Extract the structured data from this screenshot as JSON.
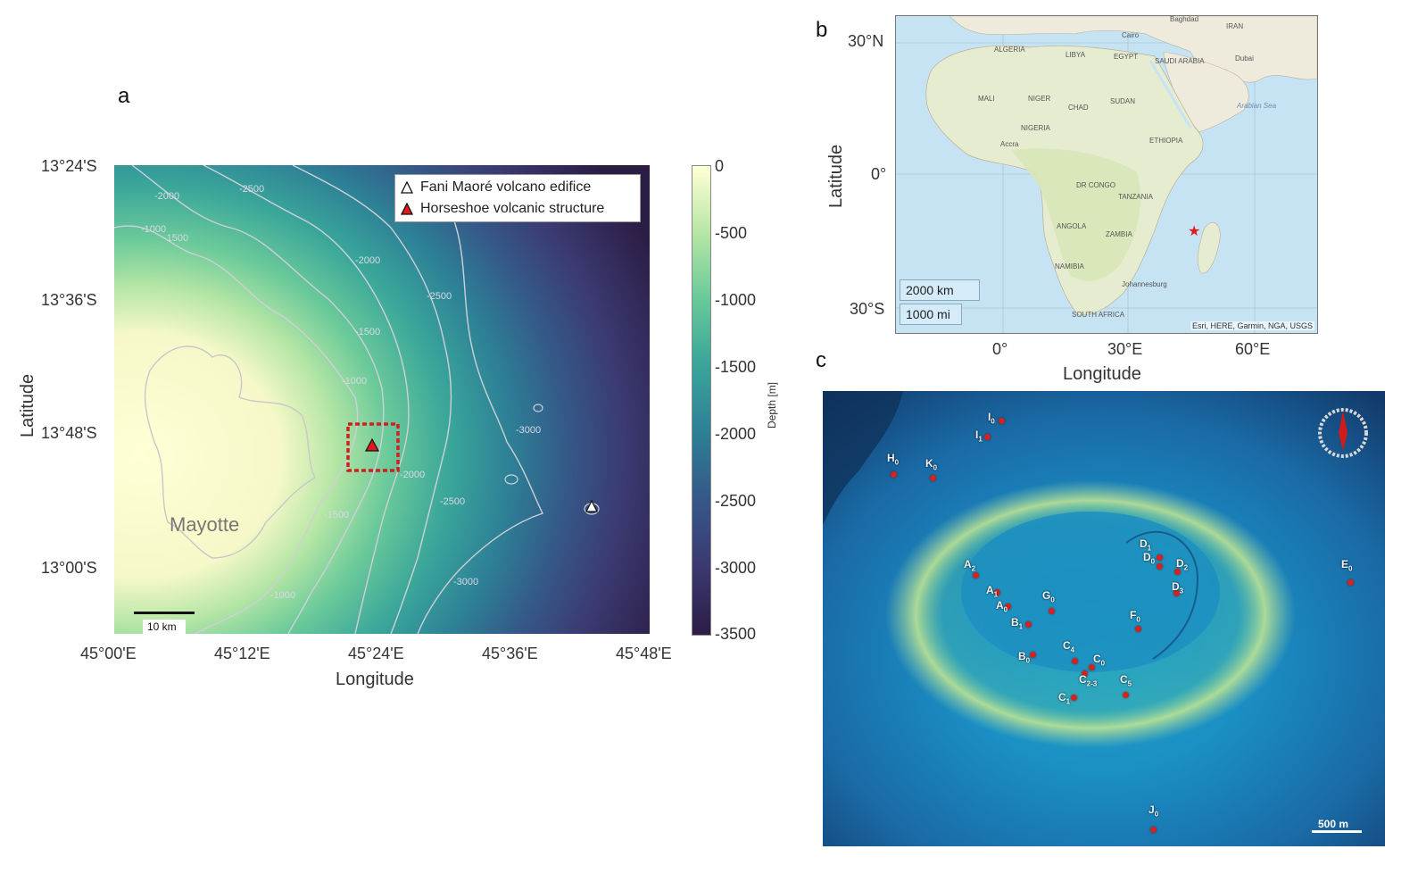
{
  "panel_a": {
    "letter": "a",
    "lat_ticks": [
      "13°24'S",
      "13°36'S",
      "13°48'S",
      "13°00'S"
    ],
    "lon_ticks": [
      "45°00'E",
      "45°12'E",
      "45°24'E",
      "45°36'E",
      "45°48'E"
    ],
    "xlabel": "Longitude",
    "ylabel": "Latitude",
    "legend": {
      "item1": "Fani Maoré volcano edifice",
      "item2": "Horseshoe volcanic structure"
    },
    "contour_labels": [
      "-2000",
      "-2500",
      "-1000",
      "-1500",
      "-2000",
      "-2500",
      "-1500",
      "-1000",
      "-3000",
      "-2000",
      "-2500",
      "-1500",
      "-3000",
      "-1000"
    ],
    "island_label": "Mayotte",
    "scale_bar": "10 km",
    "colorbar": {
      "title": "Depth [m]",
      "ticks": [
        "0",
        "-500",
        "-1000",
        "-1500",
        "-2000",
        "-2500",
        "-3000",
        "-3500"
      ],
      "colors": [
        "#ffffd6",
        "#b8e7a6",
        "#6bca9a",
        "#3aa69a",
        "#2d7f96",
        "#355888",
        "#3b3a72",
        "#2c1d45"
      ]
    },
    "marker_colors": {
      "fani": "#ffffff",
      "horseshoe": "#e01a1a",
      "box": "#d61c1c"
    }
  },
  "panel_b": {
    "letter": "b",
    "lat_ticks": [
      "30°N",
      "0°",
      "30°S"
    ],
    "lon_ticks": [
      "0°",
      "30°E",
      "60°E"
    ],
    "xlabel": "Longitude",
    "ylabel": "Latitude",
    "places": [
      "Baghdad",
      "IRAN",
      "Cairo",
      "ALGERIA",
      "LIBYA",
      "EGYPT",
      "SAUDI ARABIA",
      "Dubai",
      "MALI",
      "NIGER",
      "CHAD",
      "SUDAN",
      "NIGERIA",
      "Accra",
      "ETHIOPIA",
      "Arabian Sea",
      "DR CONGO",
      "TANZANIA",
      "ANGOLA",
      "ZAMBIA",
      "NAMIBIA",
      "Johannesburg",
      "SOUTH AFRICA"
    ],
    "scale_km": "2000 km",
    "scale_mi": "1000 mi",
    "attribution": "Esri, HERE, Garmin, NGA, USGS",
    "star_color": "#e31a1c"
  },
  "panel_c": {
    "letter": "c",
    "scale_bar": "500 m",
    "sites": [
      {
        "base": "I",
        "sub": "0"
      },
      {
        "base": "I",
        "sub": "1"
      },
      {
        "base": "H",
        "sub": "0"
      },
      {
        "base": "K",
        "sub": "0"
      },
      {
        "base": "A",
        "sub": "2"
      },
      {
        "base": "A",
        "sub": "1"
      },
      {
        "base": "A",
        "sub": "0"
      },
      {
        "base": "B",
        "sub": "1"
      },
      {
        "base": "B",
        "sub": "0"
      },
      {
        "base": "G",
        "sub": "0"
      },
      {
        "base": "C",
        "sub": "4"
      },
      {
        "base": "C",
        "sub": "0"
      },
      {
        "base": "C",
        "sub": "2-3"
      },
      {
        "base": "C",
        "sub": "1"
      },
      {
        "base": "C",
        "sub": "5"
      },
      {
        "base": "F",
        "sub": "0"
      },
      {
        "base": "D",
        "sub": "1"
      },
      {
        "base": "D",
        "sub": "0"
      },
      {
        "base": "D",
        "sub": "2"
      },
      {
        "base": "D",
        "sub": "3"
      },
      {
        "base": "E",
        "sub": "0"
      },
      {
        "base": "J",
        "sub": "0"
      }
    ],
    "site_color": "#d8211d"
  }
}
